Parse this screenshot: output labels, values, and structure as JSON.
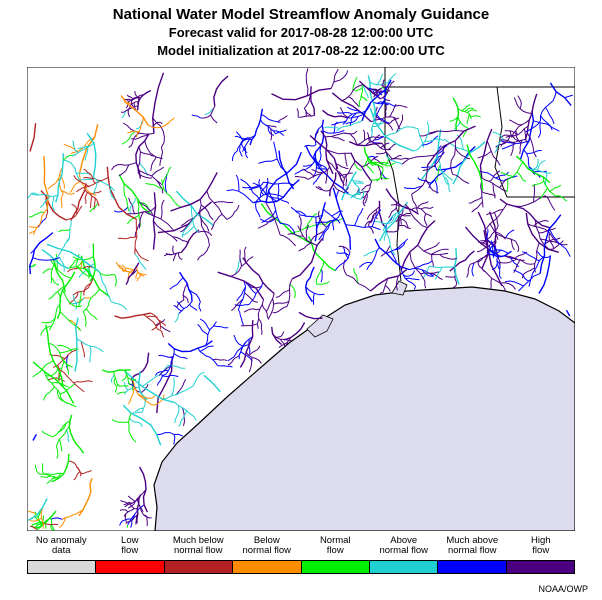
{
  "title": {
    "main": "National Water Model Streamflow Anomaly Guidance",
    "forecast": "Forecast valid for 2017-08-28 12:00:00 UTC",
    "initialization": "Model initialization at 2017-08-22 12:00:00 UTC"
  },
  "map": {
    "region": "Texas / Louisiana Gulf Coast",
    "colors": {
      "land": "#ffffff",
      "water": "#dcdcee",
      "border": "#000000"
    },
    "river_icon": "stream-network-icon"
  },
  "legend": {
    "categories": [
      {
        "label": "No anomaly\ndata",
        "color": "#d9d9d9"
      },
      {
        "label": "Low\nflow",
        "color": "#ff0000"
      },
      {
        "label": "Much below\nnormal flow",
        "color": "#b22222"
      },
      {
        "label": "Below\nnormal flow",
        "color": "#ff8c00"
      },
      {
        "label": "Normal\nflow",
        "color": "#00ee00"
      },
      {
        "label": "Above\nnormal flow",
        "color": "#20d0d0"
      },
      {
        "label": "Much above\nnormal flow",
        "color": "#0000ff"
      },
      {
        "label": "High\nflow",
        "color": "#4b0082"
      }
    ]
  },
  "credit": "NOAA/OWP"
}
